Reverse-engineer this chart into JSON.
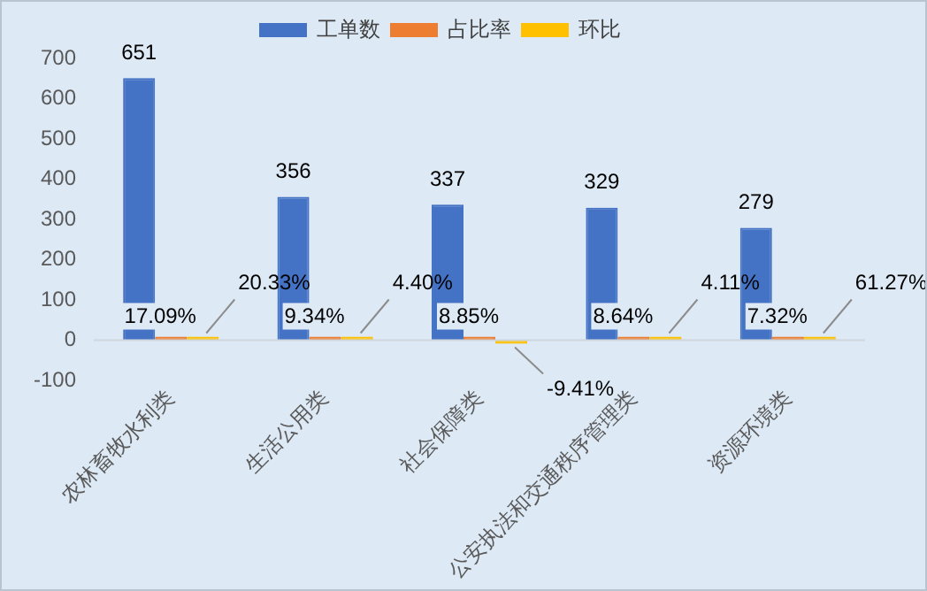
{
  "chart_data": {
    "type": "bar",
    "categories": [
      "农林畜牧水利类",
      "生活公用类",
      "社会保障类",
      "公安执法和交通秩序管理类",
      "资源环境类"
    ],
    "series": [
      {
        "name": "工单数",
        "color": "#4472c4",
        "values": [
          651,
          356,
          337,
          329,
          279
        ]
      },
      {
        "name": "占比率",
        "color": "#ed7d31",
        "values": [
          0.1709,
          0.0934,
          0.0885,
          0.0864,
          0.0732
        ],
        "value_labels": [
          "17.09%",
          "9.34%",
          "8.85%",
          "8.64%",
          "7.32%"
        ]
      },
      {
        "name": "环比",
        "color": "#ffc000",
        "values": [
          0.2033,
          0.044,
          -0.0941,
          0.0411,
          0.6127
        ],
        "value_labels": [
          "20.33%",
          "4.40%",
          "-9.41%",
          "4.11%",
          "61.27%"
        ]
      }
    ],
    "ylim": [
      -100,
      700
    ],
    "yticks": [
      -100,
      0,
      100,
      200,
      300,
      400,
      500,
      600,
      700
    ],
    "grid": false,
    "legend": "top",
    "data_labels": true
  }
}
